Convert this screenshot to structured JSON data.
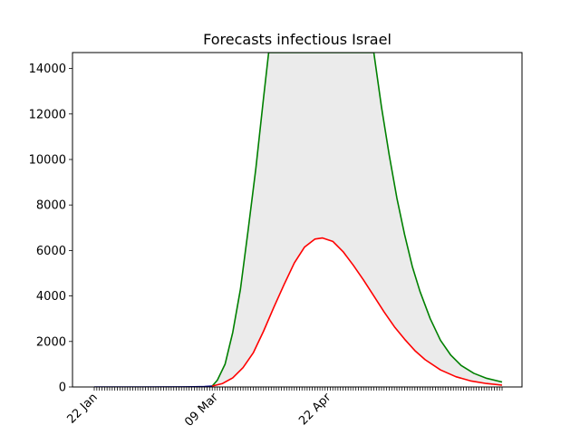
{
  "chart_data": {
    "type": "line",
    "title": "Forecasts infectious Israel",
    "xlabel": "",
    "ylabel": "",
    "x_start": "2020-01-22",
    "x_end": "2020-06-29",
    "x_tick_labels": [
      {
        "date": "2020-01-22",
        "label": "22 Jan"
      },
      {
        "date": "2020-03-09",
        "label": "09 Mar"
      },
      {
        "date": "2020-04-22",
        "label": "22 Apr"
      }
    ],
    "ylim": [
      0,
      14700
    ],
    "y_ticks": [
      0,
      2000,
      4000,
      6000,
      8000,
      10000,
      12000,
      14000
    ],
    "grid": false,
    "series": [
      {
        "role": "observed",
        "color": "#00008b",
        "points": [
          {
            "x": "2020-01-22",
            "y": 0
          },
          {
            "x": "2020-02-10",
            "y": 0
          },
          {
            "x": "2020-02-25",
            "y": 5
          },
          {
            "x": "2020-03-01",
            "y": 10
          },
          {
            "x": "2020-03-05",
            "y": 20
          },
          {
            "x": "2020-03-08",
            "y": 40
          }
        ]
      },
      {
        "role": "upper bound",
        "color": "#008000",
        "points": [
          {
            "x": "2020-03-08",
            "y": 40
          },
          {
            "x": "2020-03-10",
            "y": 300
          },
          {
            "x": "2020-03-13",
            "y": 1000
          },
          {
            "x": "2020-03-16",
            "y": 2400
          },
          {
            "x": "2020-03-19",
            "y": 4300
          },
          {
            "x": "2020-03-22",
            "y": 6900
          },
          {
            "x": "2020-03-25",
            "y": 9600
          },
          {
            "x": "2020-03-28",
            "y": 12700
          },
          {
            "x": "2020-03-30",
            "y": 14700
          },
          {
            "x": "2020-05-10",
            "y": 14700
          },
          {
            "x": "2020-05-13",
            "y": 12300
          },
          {
            "x": "2020-05-16",
            "y": 10200
          },
          {
            "x": "2020-05-19",
            "y": 8300
          },
          {
            "x": "2020-05-22",
            "y": 6700
          },
          {
            "x": "2020-05-25",
            "y": 5300
          },
          {
            "x": "2020-05-28",
            "y": 4200
          },
          {
            "x": "2020-06-01",
            "y": 3000
          },
          {
            "x": "2020-06-05",
            "y": 2050
          },
          {
            "x": "2020-06-09",
            "y": 1400
          },
          {
            "x": "2020-06-13",
            "y": 950
          },
          {
            "x": "2020-06-18",
            "y": 600
          },
          {
            "x": "2020-06-23",
            "y": 380
          },
          {
            "x": "2020-06-29",
            "y": 220
          }
        ]
      },
      {
        "role": "forecast",
        "color": "#ff0000",
        "points": [
          {
            "x": "2020-03-08",
            "y": 40
          },
          {
            "x": "2020-03-12",
            "y": 150
          },
          {
            "x": "2020-03-16",
            "y": 400
          },
          {
            "x": "2020-03-20",
            "y": 850
          },
          {
            "x": "2020-03-24",
            "y": 1500
          },
          {
            "x": "2020-03-28",
            "y": 2450
          },
          {
            "x": "2020-04-01",
            "y": 3500
          },
          {
            "x": "2020-04-05",
            "y": 4500
          },
          {
            "x": "2020-04-09",
            "y": 5450
          },
          {
            "x": "2020-04-13",
            "y": 6150
          },
          {
            "x": "2020-04-17",
            "y": 6500
          },
          {
            "x": "2020-04-20",
            "y": 6550
          },
          {
            "x": "2020-04-24",
            "y": 6400
          },
          {
            "x": "2020-04-28",
            "y": 5950
          },
          {
            "x": "2020-05-02",
            "y": 5350
          },
          {
            "x": "2020-05-06",
            "y": 4700
          },
          {
            "x": "2020-05-10",
            "y": 4000
          },
          {
            "x": "2020-05-14",
            "y": 3300
          },
          {
            "x": "2020-05-18",
            "y": 2650
          },
          {
            "x": "2020-05-22",
            "y": 2100
          },
          {
            "x": "2020-05-26",
            "y": 1600
          },
          {
            "x": "2020-05-30",
            "y": 1200
          },
          {
            "x": "2020-06-05",
            "y": 750
          },
          {
            "x": "2020-06-11",
            "y": 450
          },
          {
            "x": "2020-06-17",
            "y": 260
          },
          {
            "x": "2020-06-23",
            "y": 150
          },
          {
            "x": "2020-06-29",
            "y": 80
          }
        ]
      }
    ],
    "band": {
      "color": "#ebebeb",
      "between": [
        "upper bound",
        "forecast"
      ],
      "from": "2020-03-08",
      "to": "2020-06-29"
    }
  }
}
